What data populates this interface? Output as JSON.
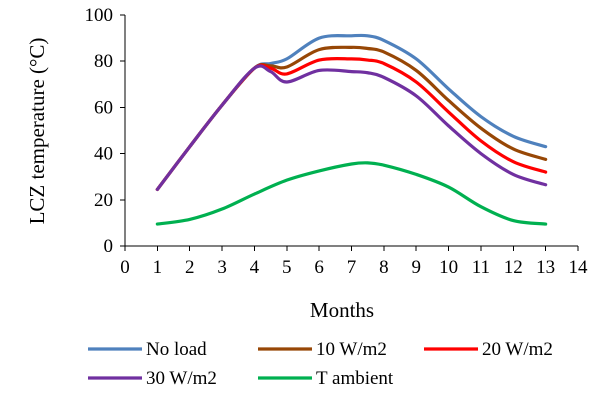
{
  "chart_data": {
    "type": "line",
    "title": "",
    "xlabel": "Months",
    "ylabel": "LCZ temperature (°C)",
    "xlim": [
      0,
      14
    ],
    "ylim": [
      0,
      100
    ],
    "xticks": [
      0,
      1,
      2,
      3,
      4,
      5,
      6,
      7,
      8,
      9,
      10,
      11,
      12,
      13,
      14
    ],
    "yticks": [
      0,
      20,
      40,
      60,
      80,
      100
    ],
    "grid": false,
    "legend_position": "bottom",
    "series": [
      {
        "name": "No load",
        "color": "#4f81bd",
        "x": [
          1,
          2,
          3,
          4,
          4.5,
          5,
          6,
          7,
          7.5,
          8,
          9,
          10,
          11,
          12,
          13
        ],
        "y": [
          24.5,
          43,
          61,
          77,
          79,
          81,
          90,
          91,
          91,
          89,
          81,
          68,
          56,
          47.5,
          43
        ]
      },
      {
        "name": "10 W/m2",
        "color": "#974706",
        "x": [
          1,
          2,
          3,
          4,
          4.5,
          5,
          6,
          7,
          7.5,
          8,
          9,
          10,
          11,
          12,
          13
        ],
        "y": [
          24.5,
          43,
          61,
          77,
          78,
          77.5,
          85,
          86,
          85.5,
          84,
          76,
          63,
          51,
          42,
          37.5
        ]
      },
      {
        "name": "20 W/m2",
        "color": "#ff0000",
        "x": [
          1,
          2,
          3,
          4,
          4.5,
          5,
          6,
          7,
          7.5,
          8,
          9,
          10,
          11,
          12,
          13
        ],
        "y": [
          24.5,
          43,
          61,
          77,
          77,
          74.5,
          80.5,
          81,
          80.5,
          79,
          71,
          58,
          45.5,
          36.5,
          32
        ]
      },
      {
        "name": "30 W/m2",
        "color": "#7030a0",
        "x": [
          1,
          2,
          3,
          4,
          4.5,
          5,
          6,
          7,
          7.5,
          8,
          9,
          10,
          11,
          12,
          13
        ],
        "y": [
          24.5,
          43,
          61,
          77,
          75.5,
          71,
          76,
          75.5,
          75,
          73,
          65,
          52,
          40,
          31,
          26.5
        ]
      },
      {
        "name": "T ambient",
        "color": "#00b050",
        "x": [
          1,
          2,
          3,
          4,
          5,
          6,
          7,
          7.5,
          8,
          9,
          10,
          11,
          12,
          13
        ],
        "y": [
          9.5,
          11.5,
          16,
          22.5,
          28.5,
          32.5,
          35.5,
          36,
          35,
          31,
          25.5,
          17,
          11,
          9.5
        ]
      }
    ],
    "legend_rows": [
      [
        "No load",
        "10 W/m2",
        "20 W/m2"
      ],
      [
        "30 W/m2",
        "T ambient"
      ]
    ]
  }
}
